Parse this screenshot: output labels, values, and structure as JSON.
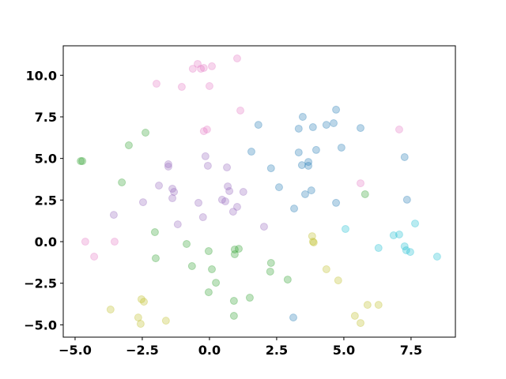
{
  "chart_data": {
    "type": "scatter",
    "xlim": [
      -5.44,
      9.15
    ],
    "ylim": [
      -5.74,
      11.77
    ],
    "xticks": [
      {
        "value": -5,
        "label": "−5.0"
      },
      {
        "value": -2.5,
        "label": "−2.5"
      },
      {
        "value": 0,
        "label": "0.0"
      },
      {
        "value": 2.5,
        "label": "2.5"
      },
      {
        "value": 5,
        "label": "5.0"
      },
      {
        "value": 7.5,
        "label": "7.5"
      }
    ],
    "yticks": [
      {
        "value": -5,
        "label": "−5.0"
      },
      {
        "value": -2.5,
        "label": "−2.5"
      },
      {
        "value": 0,
        "label": "0.0"
      },
      {
        "value": 2.5,
        "label": "2.5"
      },
      {
        "value": 5,
        "label": "5.0"
      },
      {
        "value": 7.5,
        "label": "7.5"
      },
      {
        "value": 10,
        "label": "10.0"
      }
    ],
    "series": [
      {
        "color": "#1f77b4",
        "x": [
          1.82,
          3.47,
          3.32,
          3.85,
          4.35,
          4.62,
          4.71,
          5.62,
          1.56,
          3.32,
          3.97,
          4.91,
          3.44,
          3.68,
          3.68,
          2.29,
          7.26,
          2.59,
          3.79,
          3.56,
          3.15,
          4.71,
          7.35,
          3.12
        ],
        "values": [
          7.02,
          7.5,
          6.79,
          6.88,
          7.02,
          7.12,
          7.93,
          6.83,
          5.41,
          5.36,
          5.51,
          5.65,
          4.6,
          4.79,
          4.56,
          4.41,
          5.08,
          3.27,
          3.08,
          2.85,
          1.99,
          2.33,
          2.52,
          -4.56
        ]
      },
      {
        "color": "#2ca02c",
        "x": [
          -4.79,
          -4.73,
          -3.0,
          -2.38,
          -3.26,
          5.79,
          -2.03,
          -2.0,
          -0.85,
          -0.03,
          0.94,
          1.09,
          0.94,
          -0.65,
          0.09,
          2.29,
          2.26,
          0.24,
          2.91,
          -0.03,
          1.5,
          0.91,
          0.91
        ],
        "values": [
          4.84,
          4.84,
          5.79,
          6.55,
          3.56,
          2.85,
          0.57,
          -1.0,
          -0.14,
          -0.57,
          -0.47,
          -0.43,
          -0.76,
          -1.47,
          -1.66,
          -1.28,
          -1.8,
          -2.47,
          -2.28,
          -3.04,
          -3.37,
          -3.56,
          -4.46
        ]
      },
      {
        "color": "#9467bd",
        "x": [
          -0.15,
          -1.53,
          -1.53,
          -0.06,
          0.65,
          -1.88,
          -1.38,
          -1.32,
          0.68,
          0.74,
          1.26,
          -1.38,
          -2.47,
          -0.41,
          0.47,
          0.59,
          1.03,
          0.88,
          -3.56,
          -0.24,
          -1.18,
          2.03
        ],
        "values": [
          5.13,
          4.65,
          4.51,
          4.56,
          4.46,
          3.37,
          3.18,
          2.99,
          3.32,
          3.04,
          2.99,
          2.61,
          2.37,
          2.33,
          2.52,
          2.42,
          2.09,
          1.8,
          1.61,
          1.47,
          1.04,
          0.9
        ]
      },
      {
        "color": "#e377c2",
        "x": [
          -0.44,
          1.03,
          -0.62,
          -0.32,
          -0.21,
          0.09,
          -1.97,
          -1.03,
          0.0,
          1.15,
          -0.21,
          -0.09,
          7.06,
          5.62,
          -4.62,
          -3.53,
          -4.29
        ],
        "values": [
          10.68,
          11.01,
          10.39,
          10.39,
          10.44,
          10.54,
          9.49,
          9.3,
          9.35,
          7.88,
          6.64,
          6.74,
          6.74,
          3.51,
          0.0,
          0.0,
          -0.9
        ]
      },
      {
        "color": "#bcbd22",
        "x": [
          3.82,
          3.85,
          3.88,
          4.35,
          4.79,
          -3.68,
          -2.53,
          -2.44,
          -2.65,
          -2.56,
          -1.62,
          5.88,
          6.29,
          5.41,
          5.62
        ],
        "values": [
          0.33,
          0.0,
          -0.05,
          -1.66,
          -2.33,
          -4.08,
          -3.46,
          -3.61,
          -4.56,
          -4.94,
          -4.75,
          -3.8,
          -3.8,
          -4.46,
          -4.89
        ]
      },
      {
        "color": "#17becf",
        "x": [
          5.06,
          6.85,
          7.06,
          7.65,
          6.29,
          7.26,
          7.32,
          7.47,
          8.47
        ],
        "values": [
          0.76,
          0.38,
          0.43,
          1.09,
          -0.38,
          -0.28,
          -0.52,
          -0.62,
          -0.9
        ]
      }
    ]
  }
}
